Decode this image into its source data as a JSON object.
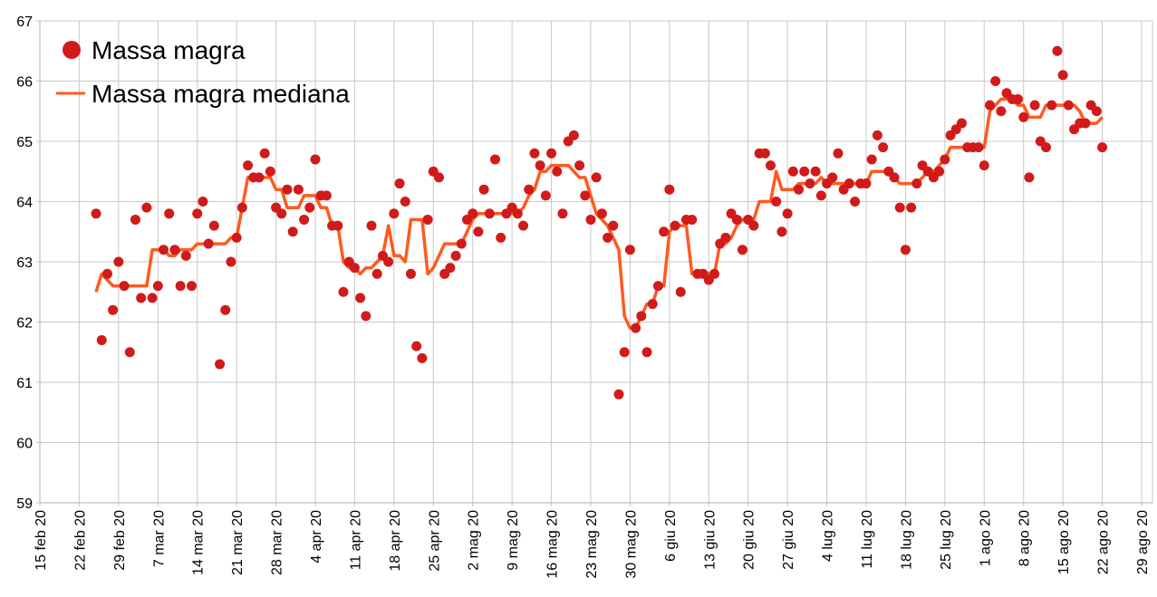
{
  "chart_data": {
    "type": "scatter",
    "title": "",
    "xlabel": "",
    "ylabel": "",
    "ylim": [
      59,
      67
    ],
    "y_ticks": [
      "59",
      "60",
      "61",
      "62",
      "63",
      "64",
      "65",
      "66",
      "67"
    ],
    "x_unit": "days since 15 feb 20",
    "xlim": [
      0,
      196
    ],
    "x_ticks": [
      {
        "day": 0,
        "label": "15 feb 20"
      },
      {
        "day": 7,
        "label": "22 feb 20"
      },
      {
        "day": 14,
        "label": "29 feb 20"
      },
      {
        "day": 21,
        "label": "7 mar 20"
      },
      {
        "day": 28,
        "label": "14 mar 20"
      },
      {
        "day": 35,
        "label": "21 mar 20"
      },
      {
        "day": 42,
        "label": "28 mar 20"
      },
      {
        "day": 49,
        "label": "4 apr 20"
      },
      {
        "day": 56,
        "label": "11 apr 20"
      },
      {
        "day": 63,
        "label": "18 apr 20"
      },
      {
        "day": 70,
        "label": "25 apr 20"
      },
      {
        "day": 77,
        "label": "2 mag 20"
      },
      {
        "day": 84,
        "label": "9 mag 20"
      },
      {
        "day": 91,
        "label": "16 mag 20"
      },
      {
        "day": 98,
        "label": "23 mag 20"
      },
      {
        "day": 105,
        "label": "30 mag 20"
      },
      {
        "day": 112,
        "label": "6 giu 20"
      },
      {
        "day": 119,
        "label": "13 giu 20"
      },
      {
        "day": 126,
        "label": "20 giu 20"
      },
      {
        "day": 133,
        "label": "27 giu 20"
      },
      {
        "day": 140,
        "label": "4 lug 20"
      },
      {
        "day": 147,
        "label": "11 lug 20"
      },
      {
        "day": 154,
        "label": "18 lug 20"
      },
      {
        "day": 161,
        "label": "25 lug 20"
      },
      {
        "day": 168,
        "label": "1 ago 20"
      },
      {
        "day": 175,
        "label": "8 ago 20"
      },
      {
        "day": 182,
        "label": "15 ago 20"
      },
      {
        "day": 189,
        "label": "22 ago 20"
      },
      {
        "day": 196,
        "label": "29 ago 20"
      }
    ],
    "grid": true,
    "legend_position": "top-left",
    "series": [
      {
        "name": "Massa magra",
        "kind": "points",
        "color": "#d11a1a",
        "x_start": 10,
        "values": [
          63.8,
          61.7,
          62.8,
          62.2,
          63.0,
          62.6,
          61.5,
          63.7,
          62.4,
          63.9,
          62.4,
          62.6,
          63.2,
          63.8,
          63.2,
          62.6,
          63.1,
          62.6,
          63.8,
          64.0,
          63.3,
          63.6,
          61.3,
          62.2,
          63.0,
          63.4,
          63.9,
          64.6,
          64.4,
          64.4,
          64.8,
          64.5,
          63.9,
          63.8,
          64.2,
          63.5,
          64.2,
          63.7,
          63.9,
          64.7,
          64.1,
          64.1,
          63.6,
          63.6,
          62.5,
          63.0,
          62.9,
          62.4,
          62.1,
          63.6,
          62.8,
          63.1,
          63.0,
          63.8,
          64.3,
          64.0,
          62.8,
          61.6,
          61.4,
          63.7,
          64.5,
          64.4,
          62.8,
          62.9,
          63.1,
          63.3,
          63.7,
          63.8,
          63.5,
          64.2,
          63.8,
          64.7,
          63.4,
          63.8,
          63.9,
          63.8,
          63.6,
          64.2,
          64.8,
          64.6,
          64.1,
          64.8,
          64.5,
          63.8,
          65.0,
          65.1,
          64.6,
          64.1,
          63.7,
          64.4,
          63.8,
          63.4,
          63.6,
          60.8,
          61.5,
          63.2,
          61.9,
          62.1,
          61.5,
          62.3,
          62.6,
          63.5,
          64.2,
          63.6,
          62.5,
          63.7,
          63.7,
          62.8,
          62.8,
          62.7,
          62.8,
          63.3,
          63.4,
          63.8,
          63.7,
          63.2,
          63.7,
          63.6,
          64.8,
          64.8,
          64.6,
          64.0,
          63.5,
          63.8,
          64.5,
          64.2,
          64.5,
          64.3,
          64.5,
          64.1,
          64.3,
          64.4,
          64.8,
          64.2,
          64.3,
          64.0,
          64.3,
          64.3,
          64.7,
          65.1,
          64.9,
          64.5,
          64.4,
          63.9,
          63.2,
          63.9,
          64.3,
          64.6,
          64.5,
          64.4,
          64.5,
          64.7,
          65.1,
          65.2,
          65.3,
          64.9,
          64.9,
          64.9,
          64.6,
          65.6,
          66.0,
          65.5,
          65.8,
          65.7,
          65.7,
          65.4,
          64.4,
          65.6,
          65.0,
          64.9,
          65.6,
          66.5,
          66.1,
          65.6,
          65.2,
          65.3,
          65.3,
          65.6,
          65.5,
          64.9
        ]
      },
      {
        "name": "Massa magra mediana",
        "kind": "line",
        "color": "#ff5a1f",
        "rolling_median_window": 7
      }
    ]
  }
}
